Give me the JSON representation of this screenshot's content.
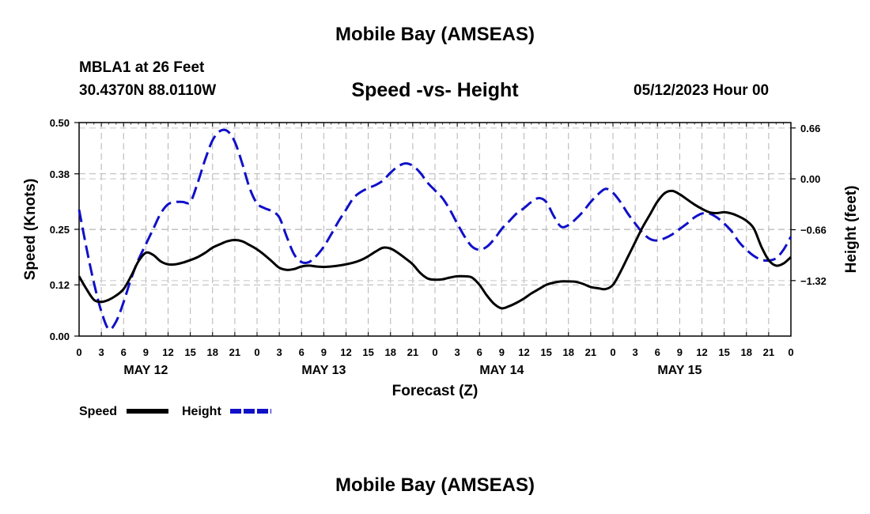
{
  "page_title": "Mobile Bay (AMSEAS)",
  "station": "MBLA1 at 26 Feet",
  "coords": "30.4370N  88.0110W",
  "footer_title": "Mobile Bay (AMSEAS)",
  "chart_data": {
    "type": "line",
    "title": "Speed -vs- Height",
    "datetime": "05/12/2023 Hour 00",
    "xlabel": "Forecast (Z)",
    "ylabel": "Speed (Knots)",
    "y2label": "Height (feet)",
    "xlim": [
      0,
      96
    ],
    "ylim": [
      0,
      0.5
    ],
    "y2lim": [
      -2.04,
      0.73
    ],
    "y_ticks": [
      0.0,
      0.12,
      0.25,
      0.38,
      0.5
    ],
    "y_tick_labels": [
      "0.00",
      "0.12",
      "0.25",
      "0.38",
      "0.50"
    ],
    "y2_ticks": [
      0.66,
      0.0,
      -0.66,
      -1.32
    ],
    "y2_tick_labels": [
      "0.66",
      "0.00",
      "−0.66",
      "−1.32"
    ],
    "x_ticks": [
      0,
      3,
      6,
      9,
      12,
      15,
      18,
      21,
      24,
      27,
      30,
      33,
      36,
      39,
      42,
      45,
      48,
      51,
      54,
      57,
      60,
      63,
      66,
      69,
      72,
      75,
      78,
      81,
      84,
      87,
      90,
      93,
      96
    ],
    "x_tick_labels": [
      "0",
      "3",
      "6",
      "9",
      "12",
      "15",
      "18",
      "21",
      "0",
      "3",
      "6",
      "9",
      "12",
      "15",
      "18",
      "21",
      "0",
      "3",
      "6",
      "9",
      "12",
      "15",
      "18",
      "21",
      "0",
      "3",
      "6",
      "9",
      "12",
      "15",
      "18",
      "21",
      "0"
    ],
    "day_labels": [
      {
        "at": 9,
        "label": "MAY 12"
      },
      {
        "at": 33,
        "label": "MAY 13"
      },
      {
        "at": 57,
        "label": "MAY 14"
      },
      {
        "at": 81,
        "label": "MAY 15"
      }
    ],
    "grid": true,
    "legend": "bottom-left",
    "series": [
      {
        "name": "Speed",
        "axis": "left",
        "color": "#000000",
        "style": "solid",
        "x": [
          0,
          1,
          2,
          3,
          4,
          5,
          6,
          7,
          8,
          9,
          10,
          11,
          12,
          13,
          14,
          15,
          16,
          17,
          18,
          19,
          20,
          21,
          22,
          23,
          24,
          25,
          26,
          27,
          28,
          29,
          30,
          31,
          32,
          33,
          34,
          35,
          36,
          37,
          38,
          39,
          40,
          41,
          42,
          43,
          44,
          45,
          46,
          47,
          48,
          49,
          50,
          51,
          52,
          53,
          54,
          55,
          56,
          57,
          58,
          59,
          60,
          61,
          62,
          63,
          64,
          65,
          66,
          67,
          68,
          69,
          70,
          71,
          72,
          73,
          74,
          75,
          76,
          77,
          78,
          79,
          80,
          81,
          82,
          83,
          84,
          85,
          86,
          87,
          88,
          89,
          90,
          91,
          92,
          93,
          94,
          95,
          96
        ],
        "values": [
          0.14,
          0.11,
          0.085,
          0.08,
          0.085,
          0.095,
          0.11,
          0.14,
          0.175,
          0.195,
          0.19,
          0.175,
          0.168,
          0.168,
          0.172,
          0.178,
          0.185,
          0.195,
          0.207,
          0.215,
          0.222,
          0.225,
          0.222,
          0.213,
          0.203,
          0.19,
          0.175,
          0.16,
          0.155,
          0.157,
          0.163,
          0.165,
          0.163,
          0.162,
          0.163,
          0.165,
          0.168,
          0.172,
          0.178,
          0.187,
          0.198,
          0.207,
          0.205,
          0.195,
          0.182,
          0.168,
          0.148,
          0.135,
          0.132,
          0.133,
          0.137,
          0.14,
          0.14,
          0.137,
          0.12,
          0.095,
          0.075,
          0.065,
          0.07,
          0.078,
          0.088,
          0.1,
          0.11,
          0.12,
          0.125,
          0.128,
          0.128,
          0.127,
          0.122,
          0.115,
          0.112,
          0.11,
          0.12,
          0.15,
          0.185,
          0.22,
          0.255,
          0.285,
          0.315,
          0.335,
          0.34,
          0.332,
          0.32,
          0.308,
          0.298,
          0.29,
          0.288,
          0.29,
          0.287,
          0.28,
          0.27,
          0.252,
          0.21,
          0.178,
          0.165,
          0.17,
          0.185
        ]
      },
      {
        "name": "Height",
        "axis": "right",
        "color": "#1010c8",
        "style": "dashed",
        "x": [
          0,
          1,
          2,
          3,
          4,
          5,
          6,
          7,
          8,
          9,
          10,
          11,
          12,
          13,
          14,
          15,
          16,
          17,
          18,
          19,
          20,
          21,
          22,
          23,
          24,
          25,
          26,
          27,
          28,
          29,
          30,
          31,
          32,
          33,
          34,
          35,
          36,
          37,
          38,
          39,
          40,
          41,
          42,
          43,
          44,
          45,
          46,
          47,
          48,
          49,
          50,
          51,
          52,
          53,
          54,
          55,
          56,
          57,
          58,
          59,
          60,
          61,
          62,
          63,
          64,
          65,
          66,
          67,
          68,
          69,
          70,
          71,
          72,
          73,
          74,
          75,
          76,
          77,
          78,
          79,
          80,
          81,
          82,
          83,
          84,
          85,
          86,
          87,
          88,
          89,
          90,
          91,
          92,
          93,
          94,
          95,
          96
        ],
        "values": [
          -0.4,
          -0.9,
          -1.35,
          -1.72,
          -1.95,
          -1.85,
          -1.6,
          -1.3,
          -1.05,
          -0.85,
          -0.65,
          -0.45,
          -0.33,
          -0.3,
          -0.3,
          -0.3,
          -0.05,
          0.25,
          0.5,
          0.62,
          0.62,
          0.48,
          0.2,
          -0.12,
          -0.32,
          -0.38,
          -0.42,
          -0.5,
          -0.75,
          -0.98,
          -1.08,
          -1.08,
          -1.0,
          -0.88,
          -0.72,
          -0.55,
          -0.4,
          -0.25,
          -0.17,
          -0.12,
          -0.08,
          -0.02,
          0.08,
          0.16,
          0.2,
          0.17,
          0.08,
          -0.05,
          -0.15,
          -0.25,
          -0.4,
          -0.58,
          -0.75,
          -0.88,
          -0.92,
          -0.88,
          -0.78,
          -0.65,
          -0.55,
          -0.45,
          -0.38,
          -0.3,
          -0.25,
          -0.3,
          -0.48,
          -0.62,
          -0.6,
          -0.52,
          -0.42,
          -0.3,
          -0.2,
          -0.13,
          -0.18,
          -0.3,
          -0.45,
          -0.58,
          -0.7,
          -0.78,
          -0.8,
          -0.77,
          -0.72,
          -0.65,
          -0.58,
          -0.5,
          -0.45,
          -0.45,
          -0.5,
          -0.58,
          -0.68,
          -0.82,
          -0.92,
          -1.0,
          -1.05,
          -1.06,
          -1.03,
          -0.92,
          -0.75
        ]
      }
    ]
  }
}
